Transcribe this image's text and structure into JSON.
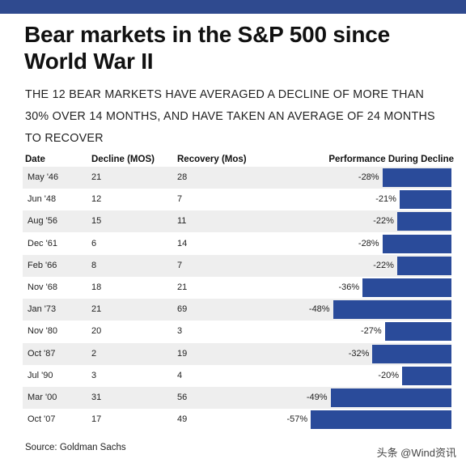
{
  "colors": {
    "accent": "#2a4b9a",
    "top_bar": "#2f4a8f",
    "row_shade": "#eeeeee"
  },
  "title": "Bear markets in the S&P 500 since World War II",
  "subtitle": "THE 12 BEAR MARKETS HAVE AVERAGED A DECLINE OF MORE THAN 30% OVER 14 MONTHS, AND HAVE TAKEN AN AVERAGE OF 24 MONTHS TO RECOVER",
  "headers": {
    "date": "Date",
    "decline": "Decline (MOS)",
    "recovery": "Recovery (Mos)",
    "performance": "Performance During Decline"
  },
  "chart_data": {
    "type": "bar",
    "title": "Bear markets in the S&P 500 since World War II",
    "subtitle": "THE 12 BEAR MARKETS HAVE AVERAGED A DECLINE OF MORE THAN 30% OVER 14 MONTHS, AND HAVE TAKEN AN AVERAGE OF 24 MONTHS TO RECOVER",
    "orientation": "horizontal",
    "categories": [
      "May '46",
      "Jun '48",
      "Aug '56",
      "Dec '61",
      "Feb '66",
      "Nov '68",
      "Jan '73",
      "Nov '80",
      "Oct '87",
      "Jul '90",
      "Mar '00",
      "Oct '07"
    ],
    "decline_months": [
      "21",
      "12",
      "15",
      "6",
      "8",
      "18",
      "21",
      "20",
      "2",
      "3",
      "31",
      "17"
    ],
    "recovery_months": [
      "28",
      "7",
      "11",
      "14",
      "7",
      "21",
      "69",
      "3",
      "19",
      "4",
      "56",
      "49"
    ],
    "values": [
      -28,
      -21,
      -22,
      -28,
      -22,
      -36,
      -48,
      -27,
      -32,
      -20,
      -49,
      -57
    ],
    "value_labels": [
      "-28%",
      "-21%",
      "-22%",
      "-28%",
      "-22%",
      "-36%",
      "-48%",
      "-27%",
      "-32%",
      "-20%",
      "-49%",
      "-57%"
    ],
    "xlabel": "",
    "ylabel": "",
    "xlim": [
      -57,
      0
    ],
    "grid": false
  },
  "source": "Source: Goldman Sachs",
  "watermark": "头条 @Wind资讯"
}
